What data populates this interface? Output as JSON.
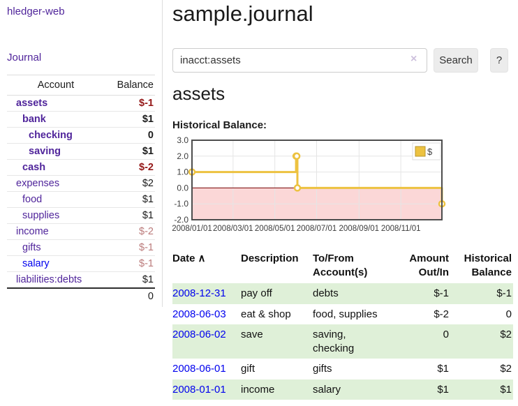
{
  "app": {
    "brand": "hledger-web",
    "nav_journal": "Journal"
  },
  "header": {
    "title": "sample.journal"
  },
  "search": {
    "value": "inacct:assets",
    "clear_icon": "×",
    "button_label": "Search",
    "help_label": "?"
  },
  "account_page": {
    "title": "assets",
    "chart_label": "Historical Balance:"
  },
  "sidebar": {
    "headers": {
      "account": "Account",
      "balance": "Balance"
    },
    "accounts": [
      {
        "name": "assets",
        "depth": 1,
        "bold": true,
        "link": "purple",
        "balance": "$-1",
        "balance_tone": "negative"
      },
      {
        "name": "bank",
        "depth": 2,
        "bold": true,
        "link": "purple",
        "balance": "$1",
        "balance_tone": "normal"
      },
      {
        "name": "checking",
        "depth": 3,
        "bold": true,
        "link": "purple",
        "balance": "0",
        "balance_tone": "normal"
      },
      {
        "name": "saving",
        "depth": 3,
        "bold": true,
        "link": "purple",
        "balance": "$1",
        "balance_tone": "normal"
      },
      {
        "name": "cash",
        "depth": 2,
        "bold": true,
        "link": "purple",
        "balance": "$-2",
        "balance_tone": "negative"
      },
      {
        "name": "expenses",
        "depth": 1,
        "bold": false,
        "link": "purple",
        "balance": "$2",
        "balance_tone": "normal"
      },
      {
        "name": "food",
        "depth": 2,
        "bold": false,
        "link": "purple",
        "balance": "$1",
        "balance_tone": "normal"
      },
      {
        "name": "supplies",
        "depth": 2,
        "bold": false,
        "link": "purple",
        "balance": "$1",
        "balance_tone": "normal"
      },
      {
        "name": "income",
        "depth": 1,
        "bold": false,
        "link": "purple",
        "balance": "$-2",
        "balance_tone": "negative-soft"
      },
      {
        "name": "gifts",
        "depth": 2,
        "bold": false,
        "link": "purple",
        "balance": "$-1",
        "balance_tone": "negative-soft"
      },
      {
        "name": "salary",
        "depth": 2,
        "bold": false,
        "link": "blue",
        "balance": "$-1",
        "balance_tone": "negative-soft"
      },
      {
        "name": "liabilities:debts",
        "depth": 1,
        "bold": false,
        "link": "purple",
        "balance": "$1",
        "balance_tone": "normal"
      }
    ],
    "total": "0"
  },
  "chart_data": {
    "type": "line",
    "steps": true,
    "title": "Historical Balance:",
    "series": [
      {
        "name": "$",
        "color": "#edc240",
        "points": [
          [
            "2008-01-01",
            1
          ],
          [
            "2008-06-01",
            2
          ],
          [
            "2008-06-02",
            2
          ],
          [
            "2008-06-03",
            0
          ],
          [
            "2008-12-31",
            -1
          ]
        ]
      }
    ],
    "x_range": [
      "2008-01-01",
      "2008-12-31"
    ],
    "ylim": [
      -2,
      3
    ],
    "y_ticks": [
      "3.0",
      "2.0",
      "1.0",
      "0.0",
      "-1.0",
      "-2.0"
    ],
    "x_ticks": [
      {
        "label": "2008/01/01",
        "date": "2008-01-01"
      },
      {
        "label": "2008/03/01",
        "date": "2008-03-01"
      },
      {
        "label": "2008/05/01",
        "date": "2008-05-01"
      },
      {
        "label": "2008/07/01",
        "date": "2008-07-01"
      },
      {
        "label": "2008/09/01",
        "date": "2008-09-01"
      },
      {
        "label": "2008/11/01",
        "date": "2008-11-01"
      }
    ],
    "legend": {
      "label": "$",
      "position": "top-right"
    },
    "grid": true,
    "grid_color": "#e5e5e5",
    "zero_line_color": "#7a0000",
    "negative_region_color": "#fbd7d7",
    "border_color": "#4d4d4d"
  },
  "register": {
    "columns": [
      {
        "label": "Date",
        "sort_icon": "∧",
        "align": "left"
      },
      {
        "label": "Description",
        "align": "left"
      },
      {
        "label": "To/From Account(s)",
        "align": "left"
      },
      {
        "label": "Amount Out/In",
        "align": "right"
      },
      {
        "label": "Historical Balance",
        "align": "right"
      }
    ],
    "rows": [
      {
        "date": "2008-12-31",
        "description": "pay off",
        "accounts": "debts",
        "amount": "$-1",
        "amount_negative": true,
        "balance": "$-1",
        "balance_negative": true
      },
      {
        "date": "2008-06-03",
        "description": "eat & shop",
        "accounts": "food, supplies",
        "amount": "$-2",
        "amount_negative": true,
        "balance": "0",
        "balance_negative": false
      },
      {
        "date": "2008-06-02",
        "description": "save",
        "accounts": "saving, checking",
        "amount": "0",
        "amount_negative": false,
        "balance": "$2",
        "balance_negative": false
      },
      {
        "date": "2008-06-01",
        "description": "gift",
        "accounts": "gifts",
        "amount": "$1",
        "amount_negative": false,
        "balance": "$2",
        "balance_negative": false
      },
      {
        "date": "2008-01-01",
        "description": "income",
        "accounts": "salary",
        "amount": "$1",
        "amount_negative": false,
        "balance": "$1",
        "balance_negative": false
      }
    ]
  },
  "colors": {
    "accent_purple": "#50259b",
    "link_blue": "#0000ee",
    "negative": "#941717",
    "negative_soft": "#bb7b7b",
    "row_green": "#dff0d8",
    "chart_line": "#edc240",
    "chart_negative_bg": "#fbd7d7",
    "chart_zero_line": "#7a0000"
  }
}
